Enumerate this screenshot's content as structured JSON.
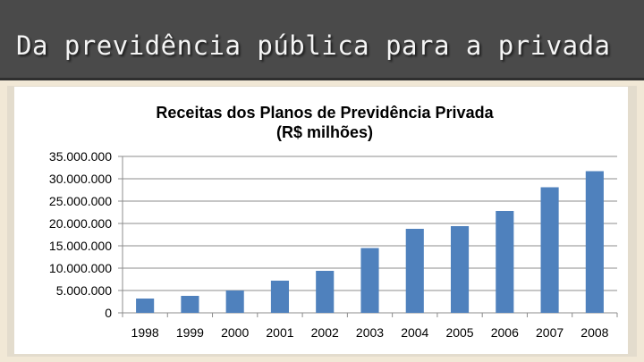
{
  "slide": {
    "title": "Da previdência pública para a privada"
  },
  "chart_data": {
    "type": "bar",
    "title": "Receitas dos Planos de Previdência Privada",
    "subtitle": "(R$ milhões)",
    "xlabel": "",
    "ylabel": "",
    "categories": [
      "1998",
      "1999",
      "2000",
      "2001",
      "2002",
      "2003",
      "2004",
      "2005",
      "2006",
      "2007",
      "2008"
    ],
    "values": [
      3200000,
      3800000,
      5000000,
      7200000,
      9400000,
      14500000,
      18800000,
      19400000,
      22800000,
      28100000,
      31700000
    ],
    "ylim": [
      0,
      35000000
    ],
    "yticks": [
      0,
      5000000,
      10000000,
      15000000,
      20000000,
      25000000,
      30000000,
      35000000
    ],
    "ytick_labels": [
      "0",
      "5.000.000",
      "10.000.000",
      "15.000.000",
      "20.000.000",
      "25.000.000",
      "30.000.000",
      "35.000.000"
    ],
    "bar_color": "#4f81bd",
    "grid": "horizontal",
    "legend": "none"
  }
}
